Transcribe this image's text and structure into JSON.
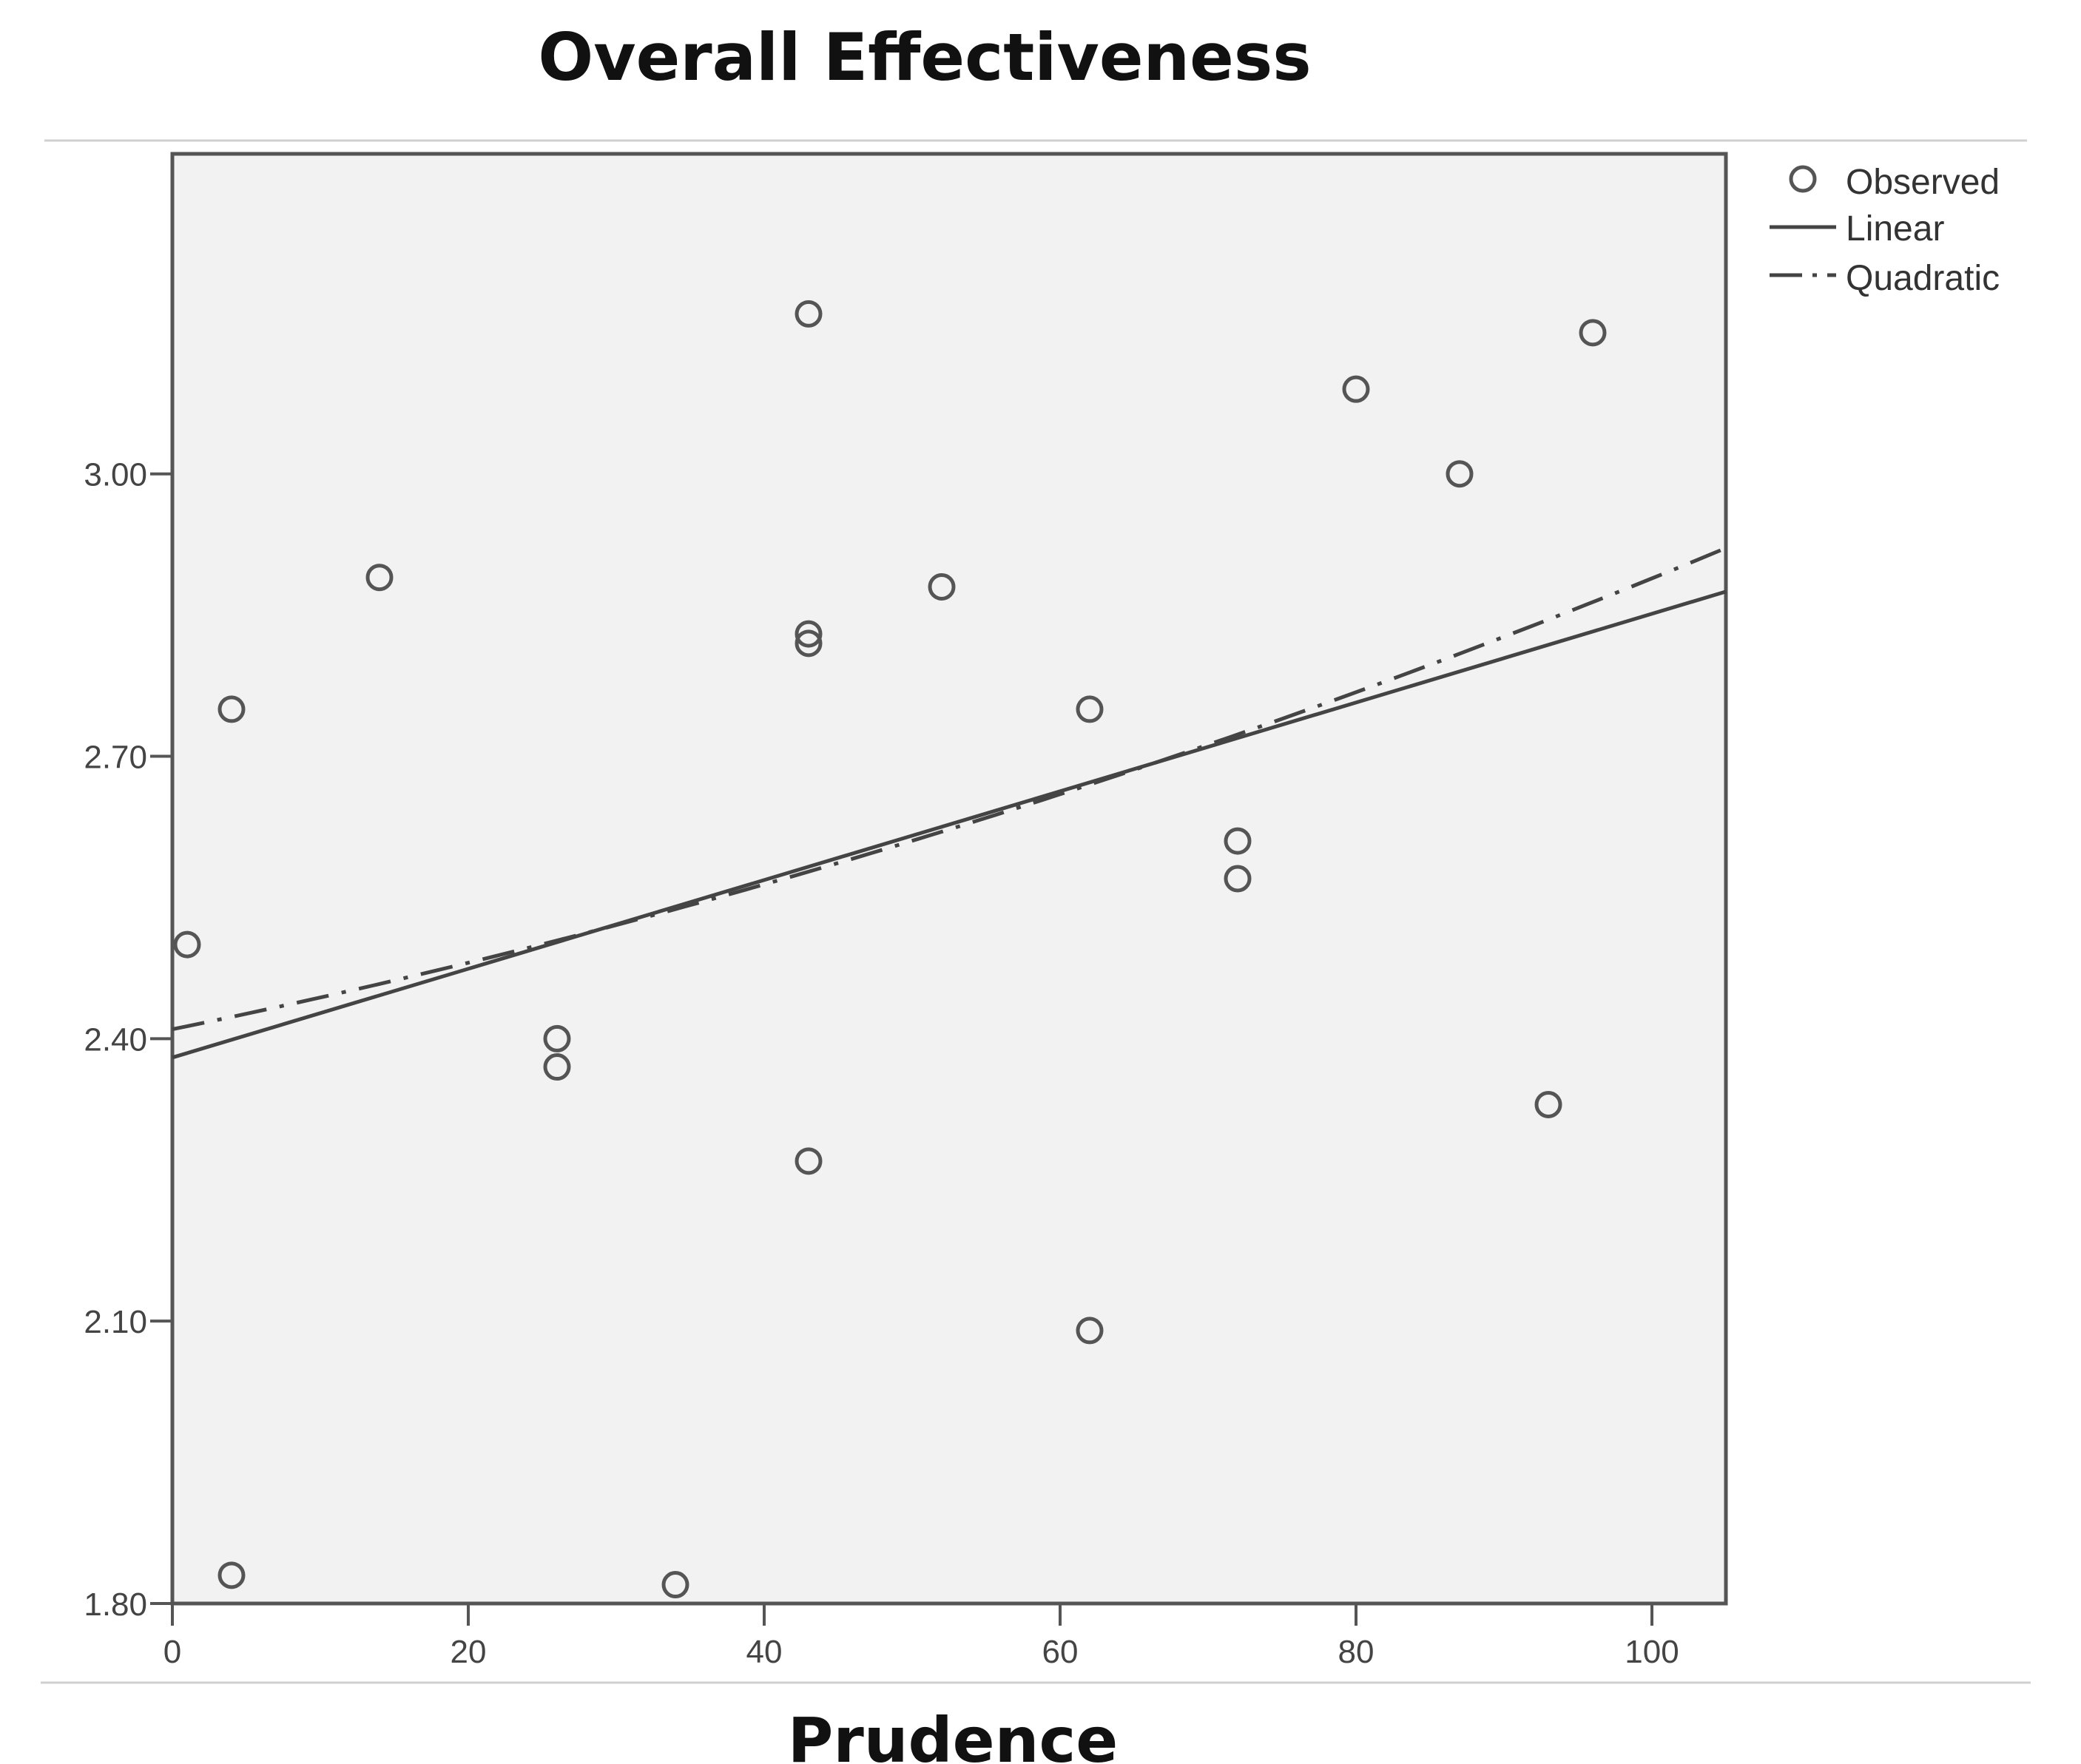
{
  "chart_data": {
    "type": "scatter",
    "title": "Overall Effectiveness",
    "xlabel": "Prudence",
    "ylabel": "",
    "xlim": [
      0,
      105
    ],
    "ylim": [
      1.8,
      3.34
    ],
    "xticks": [
      0,
      20,
      40,
      60,
      80,
      100
    ],
    "xtick_labels": [
      "0",
      "20",
      "40",
      "60",
      "80",
      "100"
    ],
    "yticks": [
      1.8,
      2.1,
      2.4,
      2.7,
      3.0
    ],
    "ytick_labels": [
      "1.80",
      "2.10",
      "2.40",
      "2.70",
      "3.00"
    ],
    "grid": false,
    "legend_position": "top-right, outside plot",
    "plot_background": "#f2f2f2",
    "observed": {
      "name": "Observed",
      "points": [
        [
          1,
          2.5
        ],
        [
          4,
          2.75
        ],
        [
          4,
          1.83
        ],
        [
          14,
          2.89
        ],
        [
          26,
          2.4
        ],
        [
          26,
          2.37
        ],
        [
          34,
          1.82
        ],
        [
          43,
          3.17
        ],
        [
          43,
          2.83
        ],
        [
          43,
          2.82
        ],
        [
          43,
          2.27
        ],
        [
          52,
          2.88
        ],
        [
          62,
          2.75
        ],
        [
          62,
          2.09
        ],
        [
          72,
          2.61
        ],
        [
          72,
          2.57
        ],
        [
          80,
          3.09
        ],
        [
          87,
          3.0
        ],
        [
          93,
          2.33
        ],
        [
          96,
          3.15
        ]
      ]
    },
    "linear": {
      "name": "Linear",
      "intercept": 2.38,
      "slope": 0.004714
    },
    "quadratic": {
      "name": "Quadratic",
      "a": 2.41,
      "b": 0.00322,
      "c": 1.57e-05
    }
  }
}
